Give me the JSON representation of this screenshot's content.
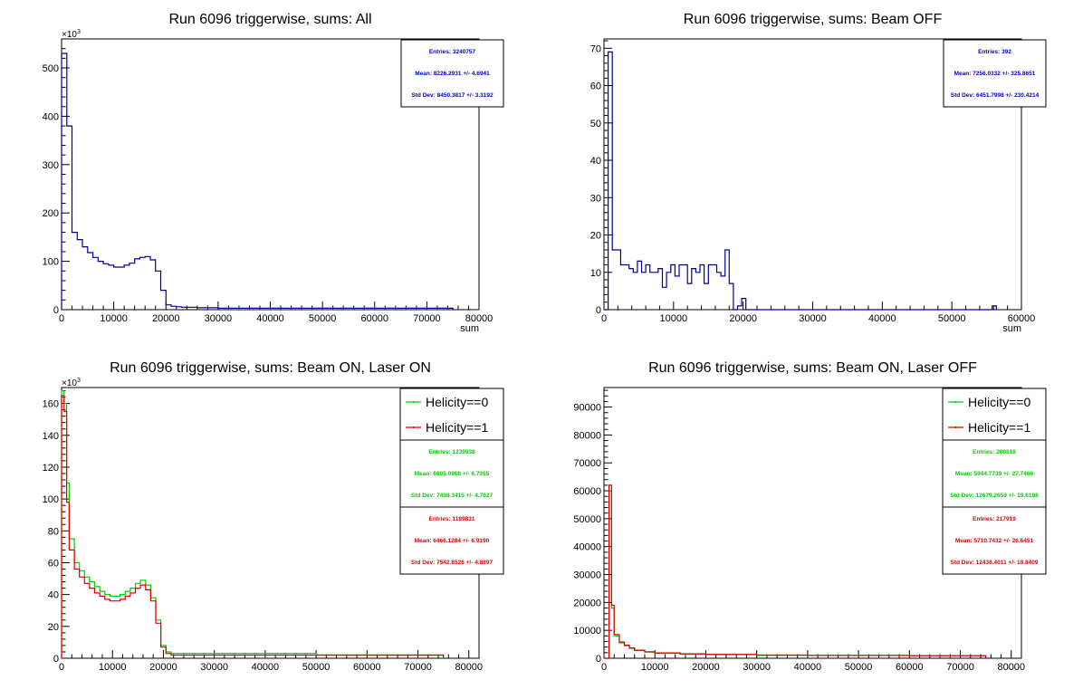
{
  "chart_data": [
    {
      "type": "histogram",
      "title": "Run 6096 triggerwise, sums: All",
      "xlabel": "sum",
      "ylabel": "",
      "y_multiplier_label": "×10",
      "y_multiplier_exp": "3",
      "xlim": [
        0,
        80000
      ],
      "ylim": [
        0,
        560
      ],
      "x_ticks": [
        0,
        10000,
        20000,
        30000,
        40000,
        50000,
        60000,
        70000,
        80000
      ],
      "x_tick_labels": [
        "0",
        "10000",
        "20000",
        "30000",
        "40000",
        "50000",
        "60000",
        "70000",
        "80000"
      ],
      "y_ticks": [
        0,
        100,
        200,
        300,
        400,
        500
      ],
      "y_tick_labels": [
        "0",
        "100",
        "200",
        "300",
        "400",
        "500"
      ],
      "series": [
        {
          "color": "#000099",
          "x": [
            0,
            1000,
            2000,
            3000,
            4000,
            5000,
            6000,
            7000,
            8000,
            9000,
            10000,
            11000,
            12000,
            13000,
            14000,
            15000,
            16000,
            17000,
            18000,
            19000,
            20000,
            21000,
            22000,
            23000,
            24000,
            26000,
            30000,
            40000,
            50000,
            60000,
            70000,
            74000,
            75000
          ],
          "y": [
            530,
            380,
            160,
            145,
            130,
            118,
            108,
            100,
            95,
            92,
            88,
            88,
            92,
            96,
            105,
            108,
            110,
            103,
            80,
            40,
            10,
            7,
            6,
            5,
            5,
            4,
            3,
            3,
            3,
            3,
            3,
            3,
            0
          ]
        }
      ],
      "stats": [
        {
          "color": "#0000cc",
          "lines": [
            "Entries: 3240757",
            "Mean: 8226.2931 +/- 4.6941",
            "Std Dev: 8450.3817 +/- 3.3192"
          ]
        }
      ],
      "legend": []
    },
    {
      "type": "histogram",
      "title": "Run 6096 triggerwise, sums: Beam OFF",
      "xlabel": "sum",
      "ylabel": "",
      "y_multiplier_label": "",
      "y_multiplier_exp": "",
      "xlim": [
        0,
        60000
      ],
      "ylim": [
        0,
        72.5
      ],
      "x_ticks": [
        0,
        10000,
        20000,
        30000,
        40000,
        50000,
        60000
      ],
      "x_tick_labels": [
        "0",
        "10000",
        "20000",
        "30000",
        "40000",
        "50000",
        "60000"
      ],
      "y_ticks": [
        0,
        10,
        20,
        30,
        40,
        50,
        60,
        70
      ],
      "y_tick_labels": [
        "0",
        "10",
        "20",
        "30",
        "40",
        "50",
        "60",
        "70"
      ],
      "series": [
        {
          "color": "#000099",
          "x": [
            0,
            600,
            1200,
            2400,
            3000,
            3600,
            4200,
            4800,
            5400,
            6000,
            6600,
            7200,
            7800,
            8400,
            9000,
            9600,
            10200,
            10800,
            11400,
            12000,
            12600,
            13200,
            13800,
            14400,
            15000,
            15600,
            16200,
            16800,
            17400,
            18000,
            18600,
            19200,
            19800,
            20400,
            55200,
            55800,
            56400
          ],
          "y": [
            0,
            69,
            16,
            12,
            12,
            11,
            10,
            13,
            10,
            12,
            10,
            10,
            11,
            6,
            10,
            12,
            9,
            12,
            12,
            7,
            11,
            10,
            12,
            7,
            12,
            12,
            10,
            9,
            16,
            7,
            0,
            1,
            3,
            0,
            0,
            1,
            0
          ]
        }
      ],
      "stats": [
        {
          "color": "#0000cc",
          "lines": [
            "Entries: 392",
            "Mean: 7256.0332 +/- 325.8651",
            "Std Dev: 6451.7998 +/- 230.4214"
          ]
        }
      ],
      "legend": []
    },
    {
      "type": "histogram",
      "title": "Run 6096 triggerwise, sums: Beam ON, Laser ON",
      "xlabel": "",
      "ylabel": "",
      "y_multiplier_label": "×10",
      "y_multiplier_exp": "3",
      "xlim": [
        0,
        82000
      ],
      "ylim": [
        0,
        170
      ],
      "x_ticks": [
        0,
        10000,
        20000,
        30000,
        40000,
        50000,
        60000,
        70000,
        80000
      ],
      "x_tick_labels": [
        "0",
        "10000",
        "20000",
        "30000",
        "40000",
        "50000",
        "60000",
        "70000",
        "80000"
      ],
      "y_ticks": [
        0,
        20,
        40,
        60,
        80,
        100,
        120,
        140,
        160
      ],
      "y_tick_labels": [
        "0",
        "20",
        "40",
        "60",
        "80",
        "100",
        "120",
        "140",
        "160"
      ],
      "series": [
        {
          "name": "Helicity==0",
          "color": "#00cc00",
          "x": [
            0,
            500,
            1000,
            1500,
            2500,
            3500,
            4500,
            5500,
            6500,
            7500,
            8500,
            9500,
            10500,
            11500,
            12500,
            13500,
            14500,
            15500,
            16500,
            17500,
            18500,
            19500,
            20500,
            21500,
            22500,
            30000,
            50000,
            74000,
            75000
          ],
          "y": [
            168,
            160,
            110,
            75,
            60,
            55,
            51,
            48,
            45,
            42,
            40,
            39,
            39,
            40,
            42,
            44,
            47,
            49,
            46,
            38,
            24,
            8,
            4,
            3,
            3,
            3,
            2,
            2,
            0
          ]
        },
        {
          "name": "Helicity==1",
          "color": "#dd0000",
          "x": [
            0,
            500,
            1000,
            1500,
            2500,
            3500,
            4500,
            5500,
            6500,
            7500,
            8500,
            9500,
            10500,
            11500,
            12500,
            13500,
            14500,
            15500,
            16500,
            17500,
            18500,
            19500,
            20500,
            21500,
            22500,
            30000,
            50000,
            74000,
            75000
          ],
          "y": [
            165,
            155,
            98,
            68,
            56,
            51,
            47,
            44,
            41,
            39,
            37,
            36,
            36,
            37,
            39,
            41,
            44,
            46,
            43,
            36,
            22,
            7,
            3,
            2,
            2,
            2,
            2,
            2,
            0
          ]
        }
      ],
      "stats": [
        {
          "color": "#00cc00",
          "lines": [
            "Entries: 1239938",
            "Mean: 6805.0968 +/- 6.7355",
            "Std Dev: 7498.3415 +/- 4.7627"
          ]
        },
        {
          "color": "#dd0000",
          "lines": [
            "Entries: 1189831",
            "Mean: 6466.1284 +/- 6.9190",
            "Std Dev: 7542.8526 +/- 4.8897"
          ]
        }
      ],
      "legend": [
        "Helicity==0",
        "Helicity==1"
      ]
    },
    {
      "type": "histogram",
      "title": "Run 6096 triggerwise, sums: Beam ON, Laser OFF",
      "xlabel": "",
      "ylabel": "",
      "y_multiplier_label": "",
      "y_multiplier_exp": "",
      "xlim": [
        0,
        82000
      ],
      "ylim": [
        0,
        97000
      ],
      "x_ticks": [
        0,
        10000,
        20000,
        30000,
        40000,
        50000,
        60000,
        70000,
        80000
      ],
      "x_tick_labels": [
        "0",
        "10000",
        "20000",
        "30000",
        "40000",
        "50000",
        "60000",
        "70000",
        "80000"
      ],
      "y_ticks": [
        0,
        10000,
        20000,
        30000,
        40000,
        50000,
        60000,
        70000,
        80000,
        90000
      ],
      "y_tick_labels": [
        "0",
        "10000",
        "20000",
        "30000",
        "40000",
        "50000",
        "60000",
        "70000",
        "80000",
        "90000"
      ],
      "series": [
        {
          "name": "Helicity==0",
          "color": "#00cc00",
          "x": [
            0,
            1000,
            1500,
            2000,
            3000,
            4000,
            5000,
            6000,
            8000,
            10000,
            15000,
            20000,
            30000,
            40000,
            60000,
            74000,
            75000
          ],
          "y": [
            0,
            60000,
            18000,
            8000,
            5500,
            4500,
            3500,
            2800,
            2200,
            1800,
            1500,
            1300,
            1100,
            1000,
            900,
            900,
            0
          ]
        },
        {
          "name": "Helicity==1",
          "color": "#dd0000",
          "x": [
            0,
            1000,
            1500,
            2000,
            3000,
            4000,
            5000,
            6000,
            8000,
            10000,
            15000,
            20000,
            30000,
            40000,
            60000,
            74000,
            75000
          ],
          "y": [
            0,
            62000,
            19000,
            8500,
            5800,
            4700,
            3700,
            2900,
            2300,
            1900,
            1600,
            1400,
            1150,
            1050,
            950,
            950,
            0
          ]
        }
      ],
      "stats": [
        {
          "color": "#00cc00",
          "lines": [
            "Entries: 208818",
            "Mean: 5944.7739 +/- 27.7466",
            "Std Dev: 12679.2659 +/- 19.6198"
          ]
        },
        {
          "color": "#dd0000",
          "lines": [
            "Entries: 217919",
            "Mean: 5710.7432 +/- 26.6451",
            "Std Dev: 12438.4011 +/- 18.8409"
          ]
        }
      ],
      "legend": [
        "Helicity==0",
        "Helicity==1"
      ]
    }
  ]
}
